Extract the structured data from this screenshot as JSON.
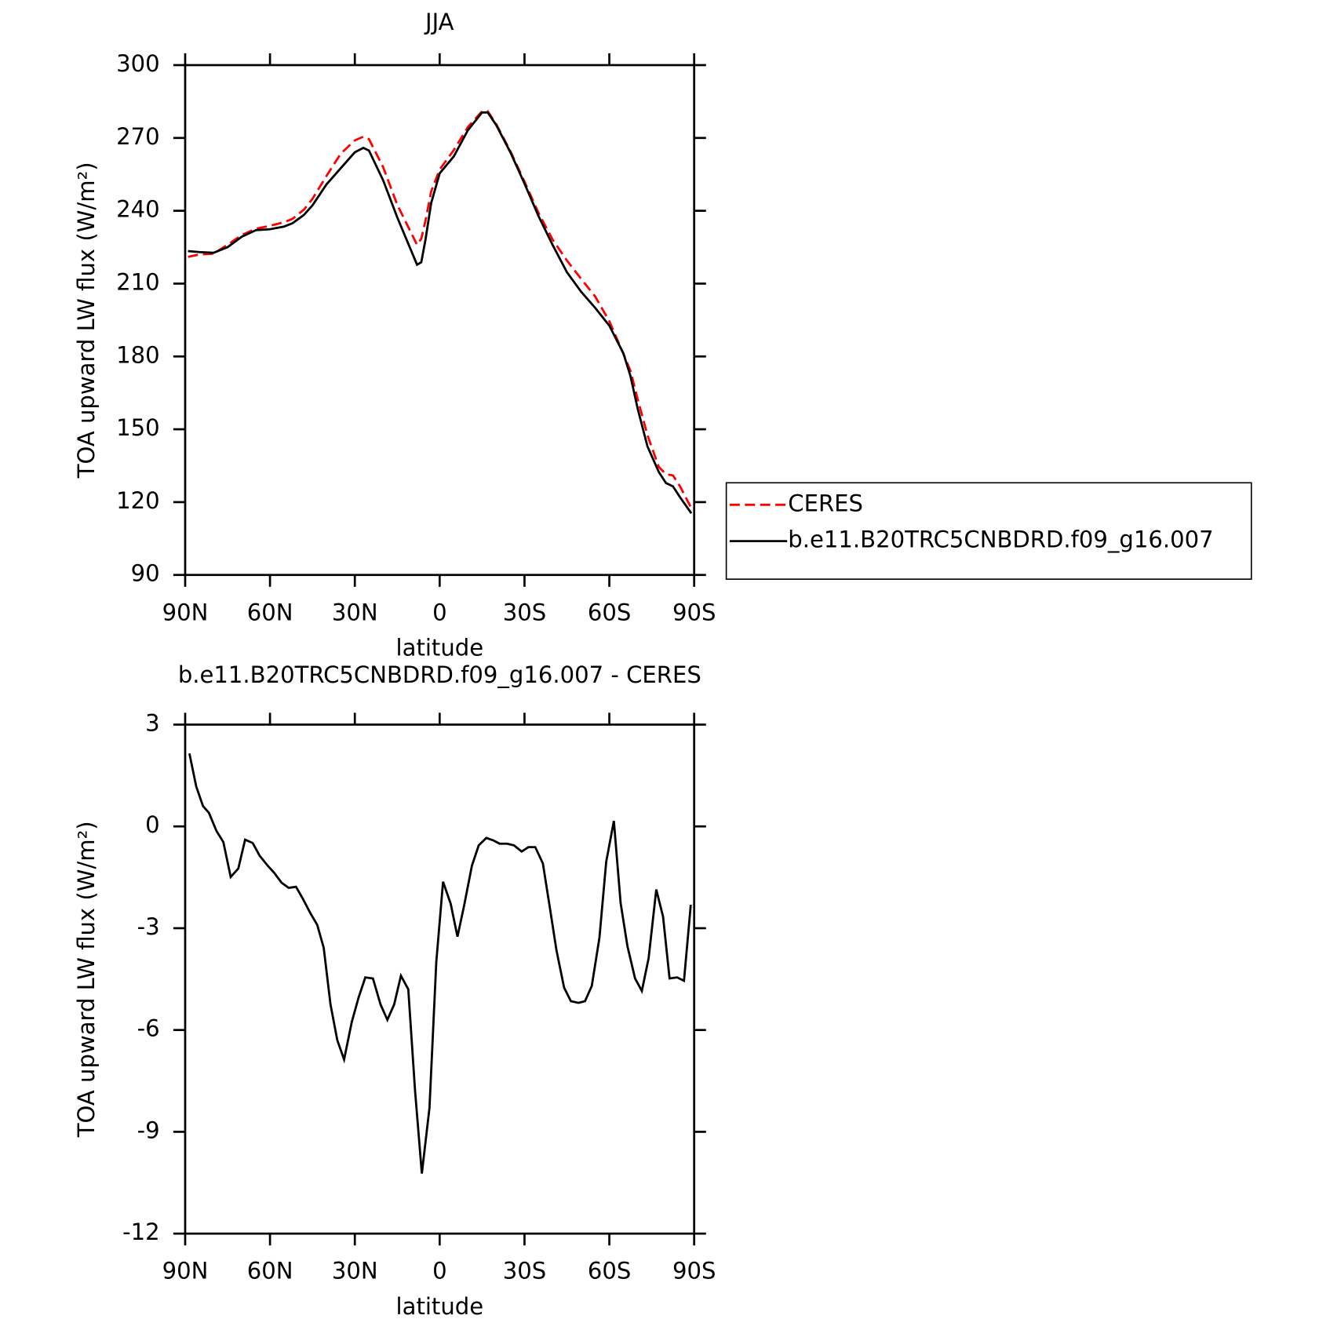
{
  "chart_data": [
    {
      "type": "line",
      "title": "JJA",
      "xlabel": "latitude",
      "ylabel": "TOA upward LW flux (W/m²)",
      "x": [
        89,
        85,
        80,
        75,
        70,
        65,
        60,
        55,
        52,
        48,
        45,
        40,
        35,
        30,
        27,
        25,
        20,
        15,
        8,
        6.5,
        5,
        3,
        0,
        -5,
        -10,
        -15,
        -17,
        -20,
        -25,
        -30,
        -35,
        -40,
        -45,
        -50,
        -55,
        -60,
        -65,
        -67.5,
        -70,
        -73.5,
        -77.5,
        -80,
        -82.5,
        -85,
        -89
      ],
      "series": [
        {
          "name": "CERES",
          "color": "#ff0000",
          "style": "dashed",
          "values": [
            221,
            222,
            222.3,
            226,
            230,
            232.6,
            233.8,
            235.3,
            236.7,
            240.5,
            244.9,
            254.4,
            263.5,
            269,
            270.5,
            269.5,
            258,
            242.5,
            226,
            228.5,
            236,
            248,
            257,
            265,
            274.5,
            281,
            281,
            275.7,
            264.6,
            252,
            239,
            228,
            219.5,
            212,
            204.7,
            194.5,
            181,
            174,
            162.5,
            147.5,
            134.5,
            131.5,
            131,
            126.5,
            117.5
          ]
        },
        {
          "name": "b.e11.B20TRC5CNBDRD.f09_g16.007",
          "color": "#000000",
          "style": "solid",
          "values": [
            223.4,
            223,
            222.7,
            225,
            229.3,
            232,
            232.4,
            233.5,
            234.9,
            238.3,
            242.2,
            250.9,
            257.5,
            264.1,
            265.9,
            264.8,
            252.6,
            237.3,
            217.8,
            218.8,
            228.2,
            243.2,
            255.4,
            262.4,
            273.2,
            280.5,
            280.5,
            275.3,
            264.1,
            251.2,
            237.7,
            225.8,
            214.7,
            206.7,
            200,
            192.7,
            181.2,
            171.8,
            158.6,
            142.9,
            132.4,
            127.9,
            126.5,
            122,
            115.4
          ]
        }
      ],
      "xlim": [
        90,
        -90
      ],
      "xticks": [
        {
          "value": 90,
          "label": "90N"
        },
        {
          "value": 60,
          "label": "60N"
        },
        {
          "value": 30,
          "label": "30N"
        },
        0,
        {
          "value": -30,
          "label": "30S"
        },
        {
          "value": -60,
          "label": "60S"
        },
        {
          "value": -90,
          "label": "90S"
        }
      ],
      "ylim": [
        90,
        300
      ],
      "yticks": [
        90,
        120,
        150,
        180,
        210,
        240,
        270,
        300
      ],
      "legend": "outside-right"
    },
    {
      "type": "line",
      "title": "b.e11.B20TRC5CNBDRD.f09_g16.007 - CERES",
      "xlabel": "latitude",
      "ylabel": "TOA upward LW flux (W/m²)",
      "x": [
        88.5,
        86.1,
        83.7,
        81.6,
        78.9,
        76.5,
        73.9,
        71.2,
        68.8,
        66.1,
        63.7,
        61.0,
        58.6,
        55.9,
        53.4,
        50.8,
        48.4,
        45.7,
        43.3,
        41.0,
        38.6,
        36.2,
        33.8,
        31.1,
        28.7,
        26.3,
        23.6,
        20.9,
        18.5,
        16.1,
        13.7,
        11.1,
        8.7,
        6.3,
        3.6,
        1.2,
        -1.2,
        -3.9,
        -6.3,
        -8.7,
        -11.4,
        -13.8,
        -16.5,
        -18.9,
        -21.2,
        -23.9,
        -26.3,
        -29.0,
        -31.4,
        -33.8,
        -36.5,
        -38.9,
        -41.3,
        -44.0,
        -46.4,
        -49.1,
        -51.4,
        -53.8,
        -56.5,
        -58.9,
        -61.6,
        -64.0,
        -66.4,
        -69.1,
        -71.5,
        -73.9,
        -76.6,
        -79.0,
        -81.3,
        -84.0,
        -86.4,
        -88.8
      ],
      "series": [
        {
          "name": "b.e11.B20TRC5CNBDRD.f09_g16.007 - CERES",
          "color": "#000000",
          "style": "solid",
          "values": [
            2.15,
            1.18,
            0.6,
            0.4,
            -0.14,
            -0.46,
            -1.49,
            -1.24,
            -0.39,
            -0.49,
            -0.86,
            -1.14,
            -1.36,
            -1.66,
            -1.81,
            -1.78,
            -2.13,
            -2.56,
            -2.9,
            -3.58,
            -5.25,
            -6.3,
            -6.87,
            -5.77,
            -5.05,
            -4.45,
            -4.48,
            -5.25,
            -5.7,
            -5.25,
            -4.4,
            -4.8,
            -7.79,
            -10.23,
            -8.29,
            -4.0,
            -1.63,
            -2.28,
            -3.25,
            -2.31,
            -1.16,
            -0.56,
            -0.34,
            -0.41,
            -0.51,
            -0.51,
            -0.56,
            -0.74,
            -0.61,
            -0.61,
            -1.09,
            -2.36,
            -3.65,
            -4.75,
            -5.15,
            -5.2,
            -5.15,
            -4.7,
            -3.28,
            -1.04,
            0.16,
            -2.26,
            -3.53,
            -4.48,
            -4.85,
            -3.88,
            -1.86,
            -2.66,
            -4.48,
            -4.45,
            -4.55,
            -2.31
          ]
        }
      ],
      "xlim": [
        90,
        -90
      ],
      "xticks": [
        {
          "value": 90,
          "label": "90N"
        },
        {
          "value": 60,
          "label": "60N"
        },
        {
          "value": 30,
          "label": "30N"
        },
        0,
        {
          "value": -30,
          "label": "30S"
        },
        {
          "value": -60,
          "label": "60S"
        },
        {
          "value": -90,
          "label": "90S"
        }
      ],
      "ylim": [
        -12,
        3
      ],
      "yticks": [
        -12,
        -9,
        -6,
        -3,
        0,
        3
      ]
    }
  ]
}
